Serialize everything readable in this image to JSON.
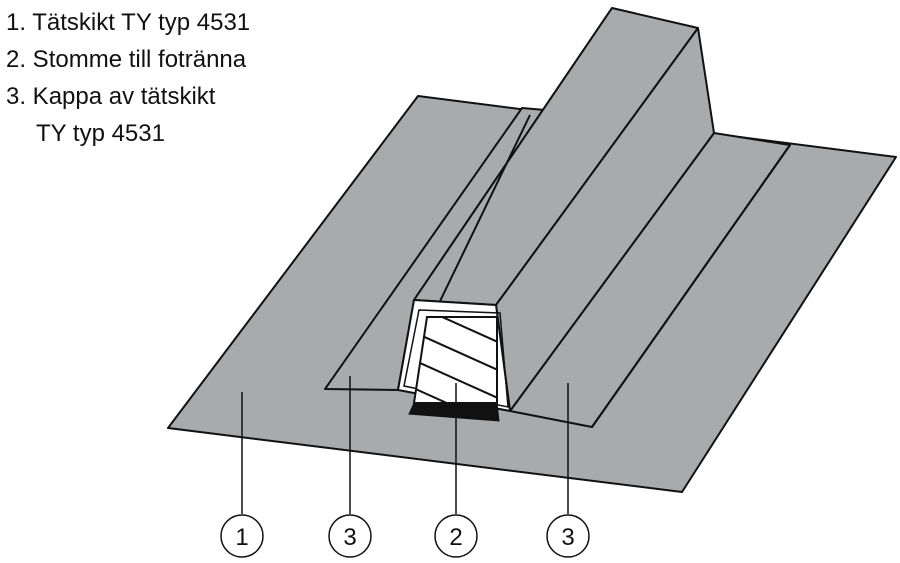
{
  "legend": {
    "item1": "1. Tätskikt TY typ 4531",
    "item2": "2. Stomme till fotränna",
    "item3_line1": "3. Kappa av tätskikt",
    "item3_line2": "TY typ 4531"
  },
  "callouts": [
    {
      "id": "membrane",
      "number": "1"
    },
    {
      "id": "cap-left",
      "number": "3"
    },
    {
      "id": "core",
      "number": "2"
    },
    {
      "id": "cap-right",
      "number": "3"
    }
  ],
  "colors": {
    "membrane": "#a9aaac",
    "outline": "#111111",
    "core_fill": "#ffffff"
  }
}
